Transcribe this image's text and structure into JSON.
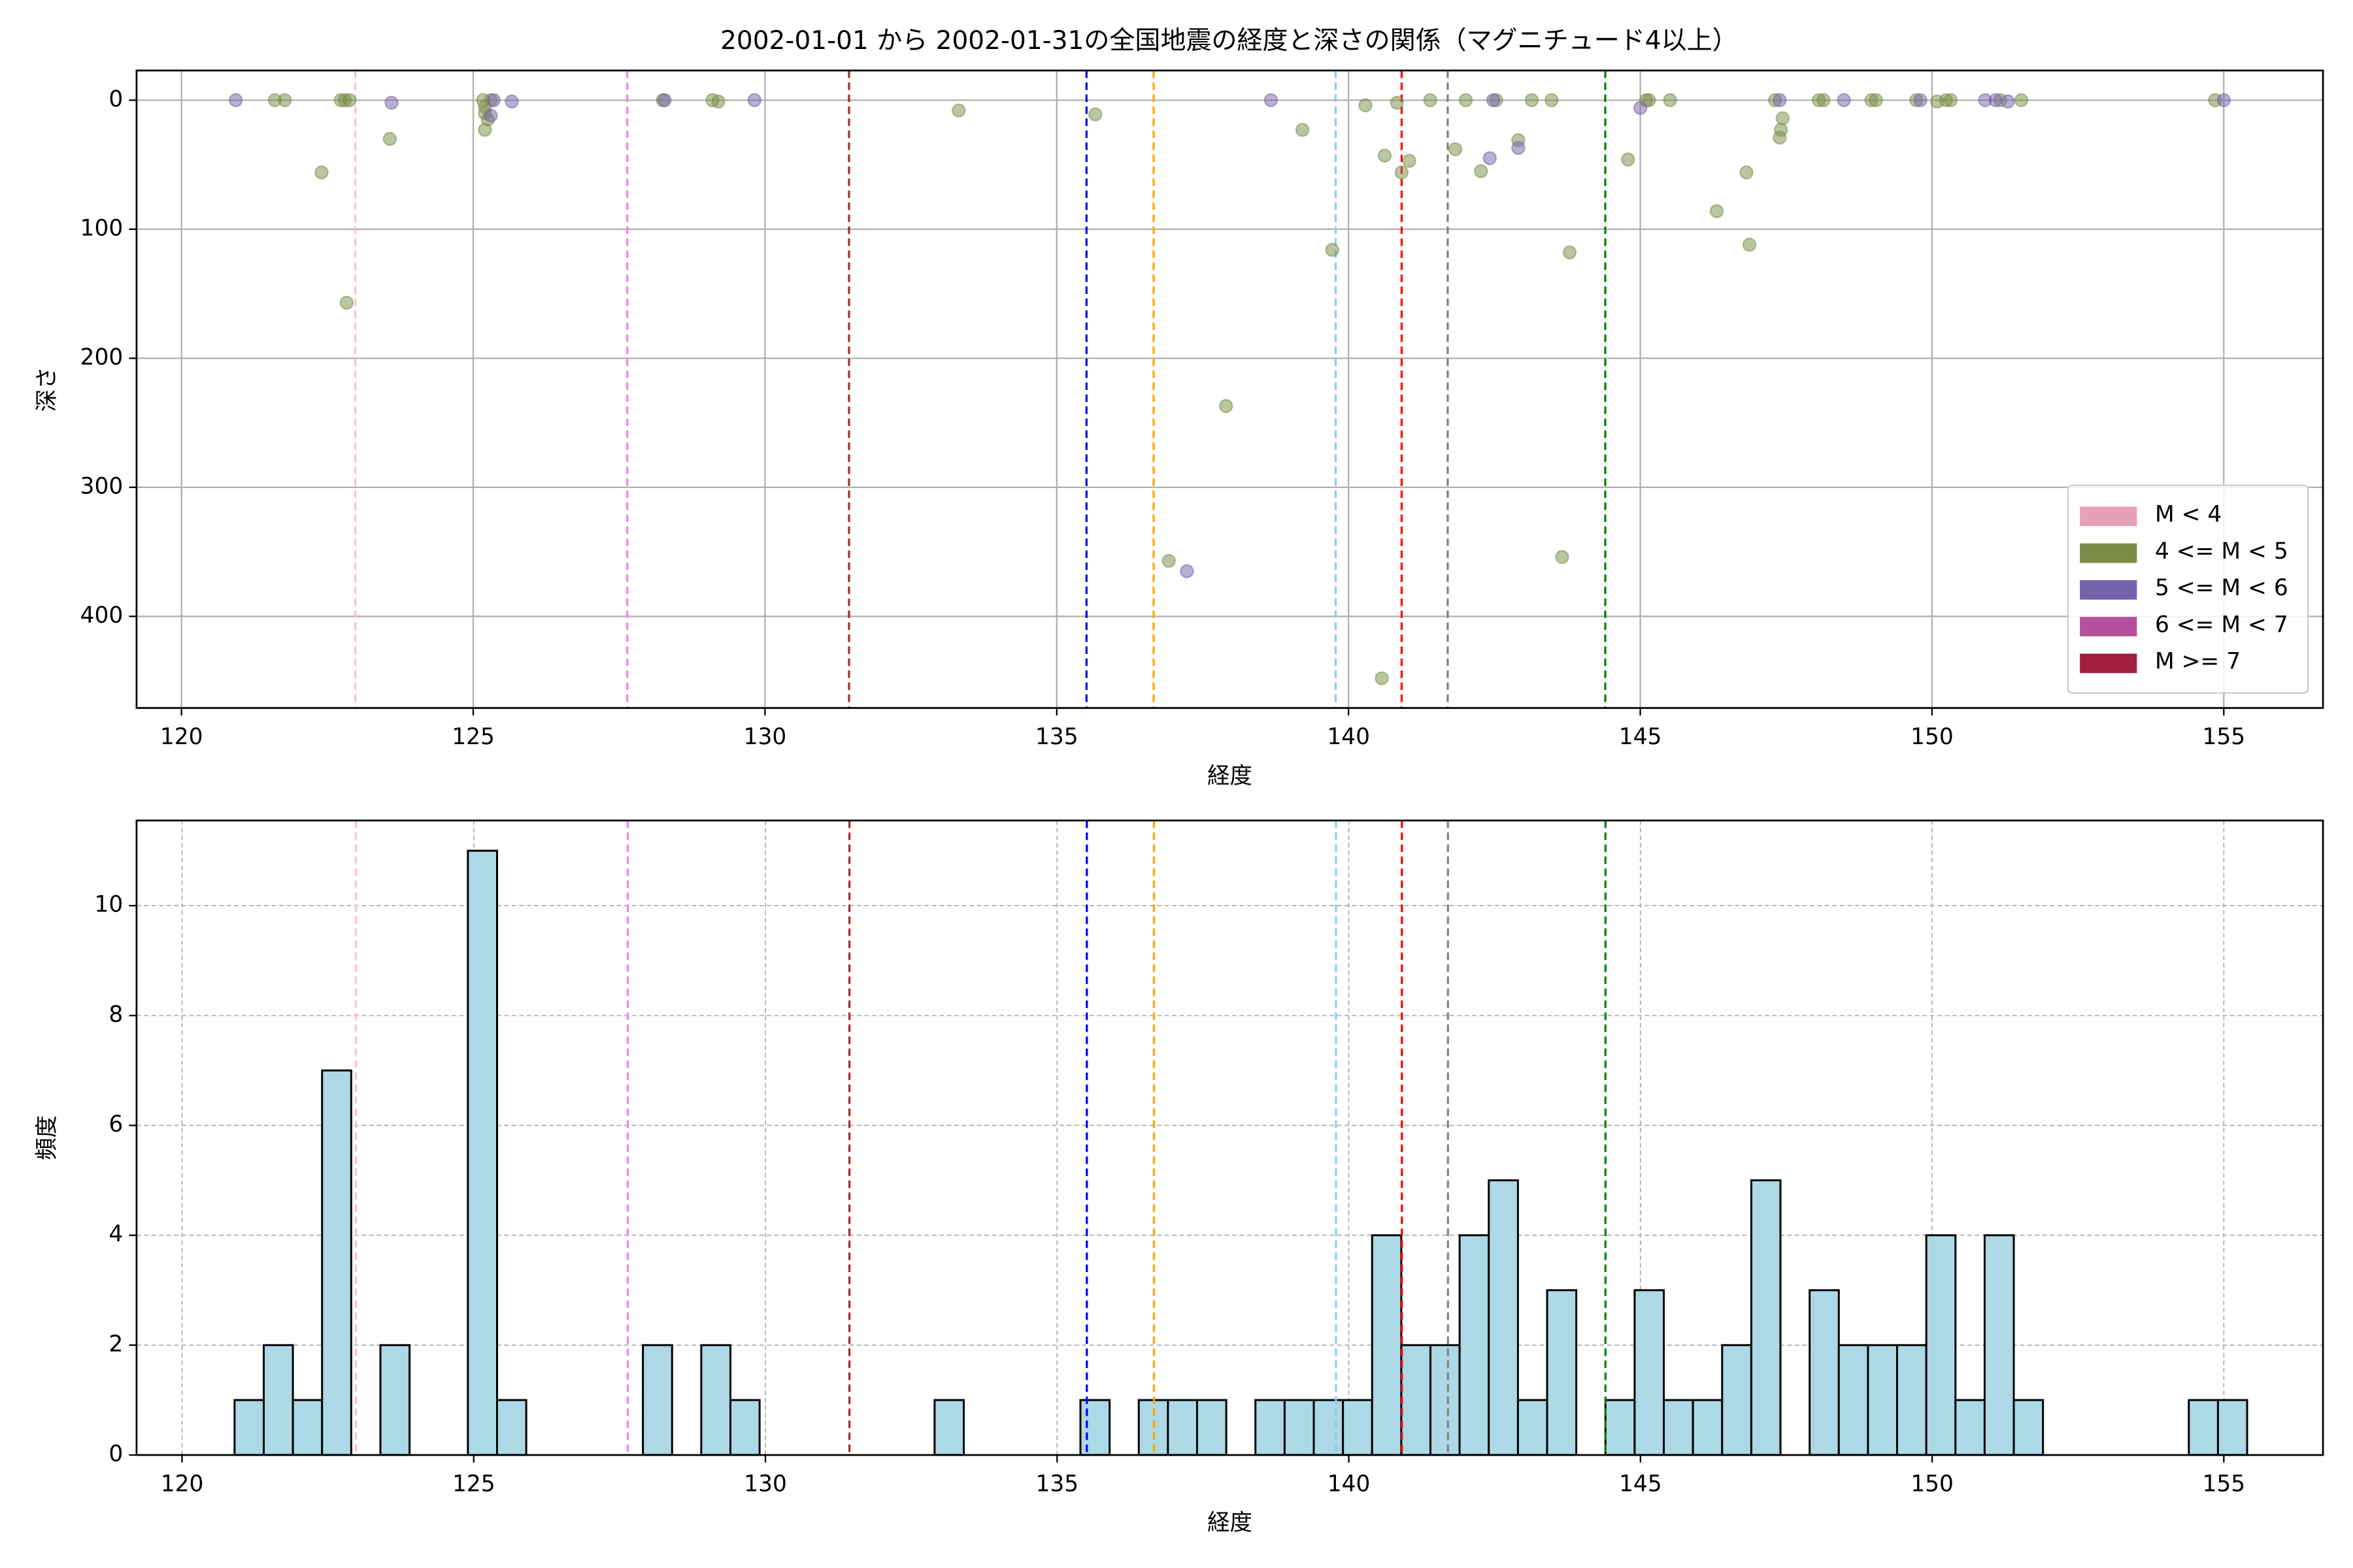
{
  "chart_data": [
    {
      "type": "scatter",
      "title": "2002-01-01 から 2002-01-31の全国地震の経度と深さの関係（マグニチュード4以上）",
      "xlabel": "経度",
      "ylabel": "深さ",
      "xlim": [
        119.23,
        156.7
      ],
      "ylim": [
        471,
        -23
      ],
      "xticks": [
        120,
        125,
        130,
        135,
        140,
        145,
        150,
        155
      ],
      "yticks": [
        0,
        100,
        200,
        300,
        400
      ],
      "grid": true,
      "legend": "lower right",
      "alpha": 0.5,
      "vlines": [
        {
          "x": 122.98,
          "color": "pink"
        },
        {
          "x": 127.64,
          "color": "violet"
        },
        {
          "x": 131.44,
          "color": "brown"
        },
        {
          "x": 135.51,
          "color": "blue"
        },
        {
          "x": 136.66,
          "color": "orange"
        },
        {
          "x": 139.78,
          "color": "skyblue"
        },
        {
          "x": 140.91,
          "color": "red"
        },
        {
          "x": 141.7,
          "color": "gray"
        },
        {
          "x": 144.4,
          "color": "green"
        }
      ],
      "series": [
        {
          "name": "M < 4",
          "color": "#e8a0b8",
          "x": [],
          "values": []
        },
        {
          "name": "4 <= M < 5",
          "color": "#7a8c45",
          "x": [
            121.6,
            121.77,
            122.4,
            122.73,
            122.8,
            122.88,
            122.83,
            123.57,
            125.17,
            125.2,
            125.2,
            125.25,
            125.2,
            125.3,
            128.25,
            129.1,
            129.2,
            133.32,
            135.66,
            136.92,
            137.9,
            139.21,
            139.72,
            140.29,
            140.57,
            140.62,
            140.83,
            140.91,
            141.04,
            141.4,
            141.83,
            142.01,
            142.27,
            142.53,
            142.91,
            143.14,
            143.48,
            143.66,
            143.79,
            144.79,
            145.1,
            145.15,
            145.51,
            146.31,
            146.82,
            146.87,
            147.31,
            147.39,
            147.41,
            147.44,
            148.06,
            148.14,
            148.96,
            149.04,
            149.73,
            150.09,
            150.24,
            150.32,
            151.17,
            151.53,
            154.85
          ],
          "values": [
            0,
            0,
            56,
            0,
            0,
            0,
            157,
            30,
            0,
            5,
            10,
            15,
            23,
            0,
            0,
            0,
            1,
            8,
            11,
            357,
            237,
            23,
            116,
            4,
            448,
            43,
            2,
            56,
            47,
            0,
            38,
            0,
            55,
            0,
            31,
            0,
            0,
            354,
            118,
            46,
            0,
            0,
            0,
            86,
            56,
            112,
            0,
            29,
            23,
            14,
            0,
            0,
            0,
            0,
            0,
            1,
            0,
            0,
            0,
            0,
            0
          ]
        },
        {
          "name": "5 <= M < 6",
          "color": "#7462aa",
          "x": [
            120.93,
            123.6,
            125.3,
            125.35,
            125.66,
            128.28,
            129.82,
            137.23,
            138.67,
            142.42,
            142.48,
            142.91,
            145.0,
            147.39,
            148.49,
            149.8,
            150.91,
            151.09,
            151.3,
            155.0
          ],
          "values": [
            0,
            2,
            12,
            0,
            1,
            0,
            0,
            365,
            0,
            45,
            0,
            37,
            6,
            0,
            0,
            0,
            0,
            0,
            1,
            0
          ]
        },
        {
          "name": "6 <= M < 7",
          "color": "#b5509c",
          "x": [],
          "values": []
        },
        {
          "name": "M >= 7",
          "color": "#a01f3e",
          "x": [],
          "values": []
        }
      ]
    },
    {
      "type": "histogram",
      "xlabel": "経度",
      "ylabel": "頻度",
      "xlim": [
        119.22,
        156.7
      ],
      "ylim": [
        0,
        11.55
      ],
      "xticks": [
        120,
        125,
        130,
        135,
        140,
        145,
        150,
        155
      ],
      "yticks": [
        0,
        2,
        4,
        6,
        8,
        10
      ],
      "grid": true,
      "color": "lightblue",
      "edgecolor": "#000000",
      "vlines": [
        {
          "x": 122.98,
          "color": "pink"
        },
        {
          "x": 127.64,
          "color": "violet"
        },
        {
          "x": 131.44,
          "color": "brown"
        },
        {
          "x": 135.51,
          "color": "blue"
        },
        {
          "x": 136.66,
          "color": "orange"
        },
        {
          "x": 139.78,
          "color": "skyblue"
        },
        {
          "x": 140.91,
          "color": "red"
        },
        {
          "x": 141.7,
          "color": "gray"
        },
        {
          "x": 144.4,
          "color": "green"
        }
      ],
      "bins": [
        120.9,
        121.4,
        121.9,
        122.4,
        122.9,
        123.4,
        123.9,
        124.4,
        124.9,
        125.4,
        125.9,
        126.4,
        126.9,
        127.4,
        127.9,
        128.4,
        128.9,
        129.4,
        129.9,
        130.4,
        130.9,
        131.4,
        131.9,
        132.4,
        132.9,
        133.4,
        133.9,
        134.4,
        134.9,
        135.4,
        135.9,
        136.4,
        136.9,
        137.4,
        137.9,
        138.4,
        138.9,
        139.4,
        139.9,
        140.4,
        140.9,
        141.4,
        141.9,
        142.4,
        142.9,
        143.4,
        143.9,
        144.4,
        144.9,
        145.4,
        145.9,
        146.4,
        146.9,
        147.4,
        147.9,
        148.4,
        148.9,
        149.4,
        149.9,
        150.4,
        150.9,
        151.4,
        151.9,
        152.4,
        152.9,
        153.4,
        153.9,
        154.4,
        154.9,
        155.4
      ],
      "values": [
        1,
        2,
        1,
        7,
        0,
        2,
        0,
        0,
        11,
        1,
        0,
        0,
        0,
        0,
        2,
        0,
        2,
        1,
        0,
        0,
        0,
        0,
        0,
        0,
        1,
        0,
        0,
        0,
        0,
        1,
        0,
        1,
        1,
        1,
        0,
        1,
        1,
        1,
        1,
        4,
        2,
        2,
        4,
        5,
        1,
        3,
        0,
        1,
        3,
        1,
        1,
        2,
        5,
        0,
        3,
        2,
        2,
        2,
        4,
        1,
        4,
        1,
        0,
        0,
        0,
        0,
        0,
        1,
        1
      ]
    }
  ]
}
